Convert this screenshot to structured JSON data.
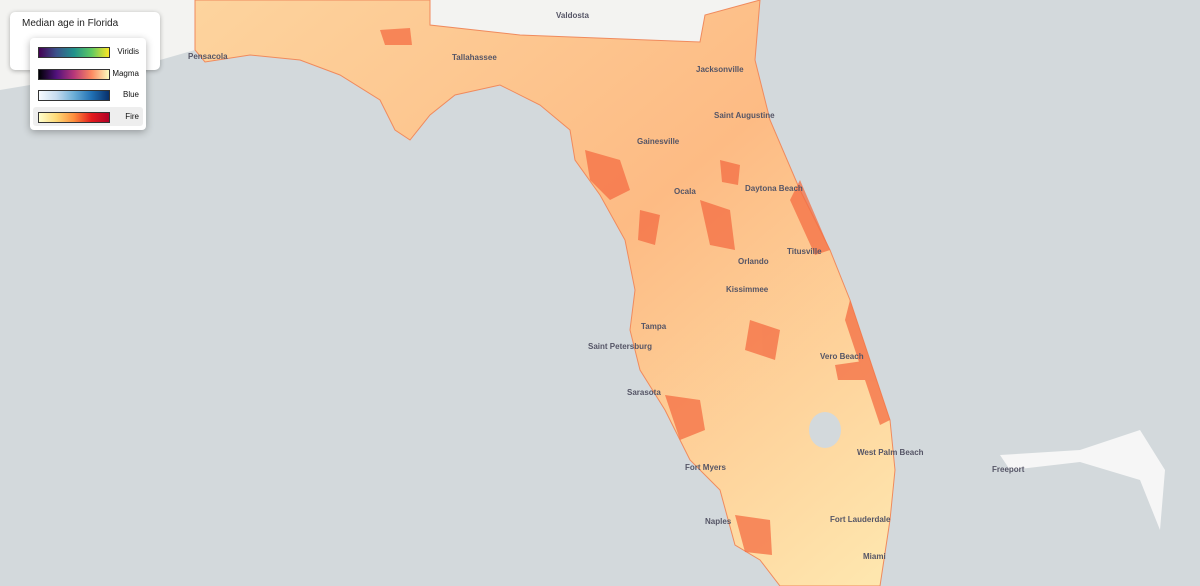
{
  "legend": {
    "title": "Median age in Florida",
    "selected": "Fire",
    "options": [
      {
        "label": "Viridis",
        "colors": [
          "#440154",
          "#3b528b",
          "#21918c",
          "#5ec962",
          "#fde725"
        ]
      },
      {
        "label": "Magma",
        "colors": [
          "#000004",
          "#51127c",
          "#b73779",
          "#fc8961",
          "#fcfdbf"
        ]
      },
      {
        "label": "Blue",
        "colors": [
          "#f7fbff",
          "#c6dbef",
          "#6baed6",
          "#2171b5",
          "#08306b"
        ]
      },
      {
        "label": "Fire",
        "colors": [
          "#ffffcc",
          "#fed976",
          "#fd8d3c",
          "#e31a1c",
          "#b10026"
        ]
      }
    ]
  },
  "map": {
    "places": [
      "Valdosta",
      "Pensacola",
      "Tallahassee",
      "Jacksonville",
      "Saint Augustine",
      "Gainesville",
      "Ocala",
      "Daytona Beach",
      "Orlando",
      "Titusville",
      "Kissimmee",
      "Tampa",
      "Saint Petersburg",
      "Sarasota",
      "Vero Beach",
      "Fort Myers",
      "West Palm Beach",
      "Naples",
      "Fort Lauderdale",
      "Miami",
      "Freeport"
    ]
  }
}
